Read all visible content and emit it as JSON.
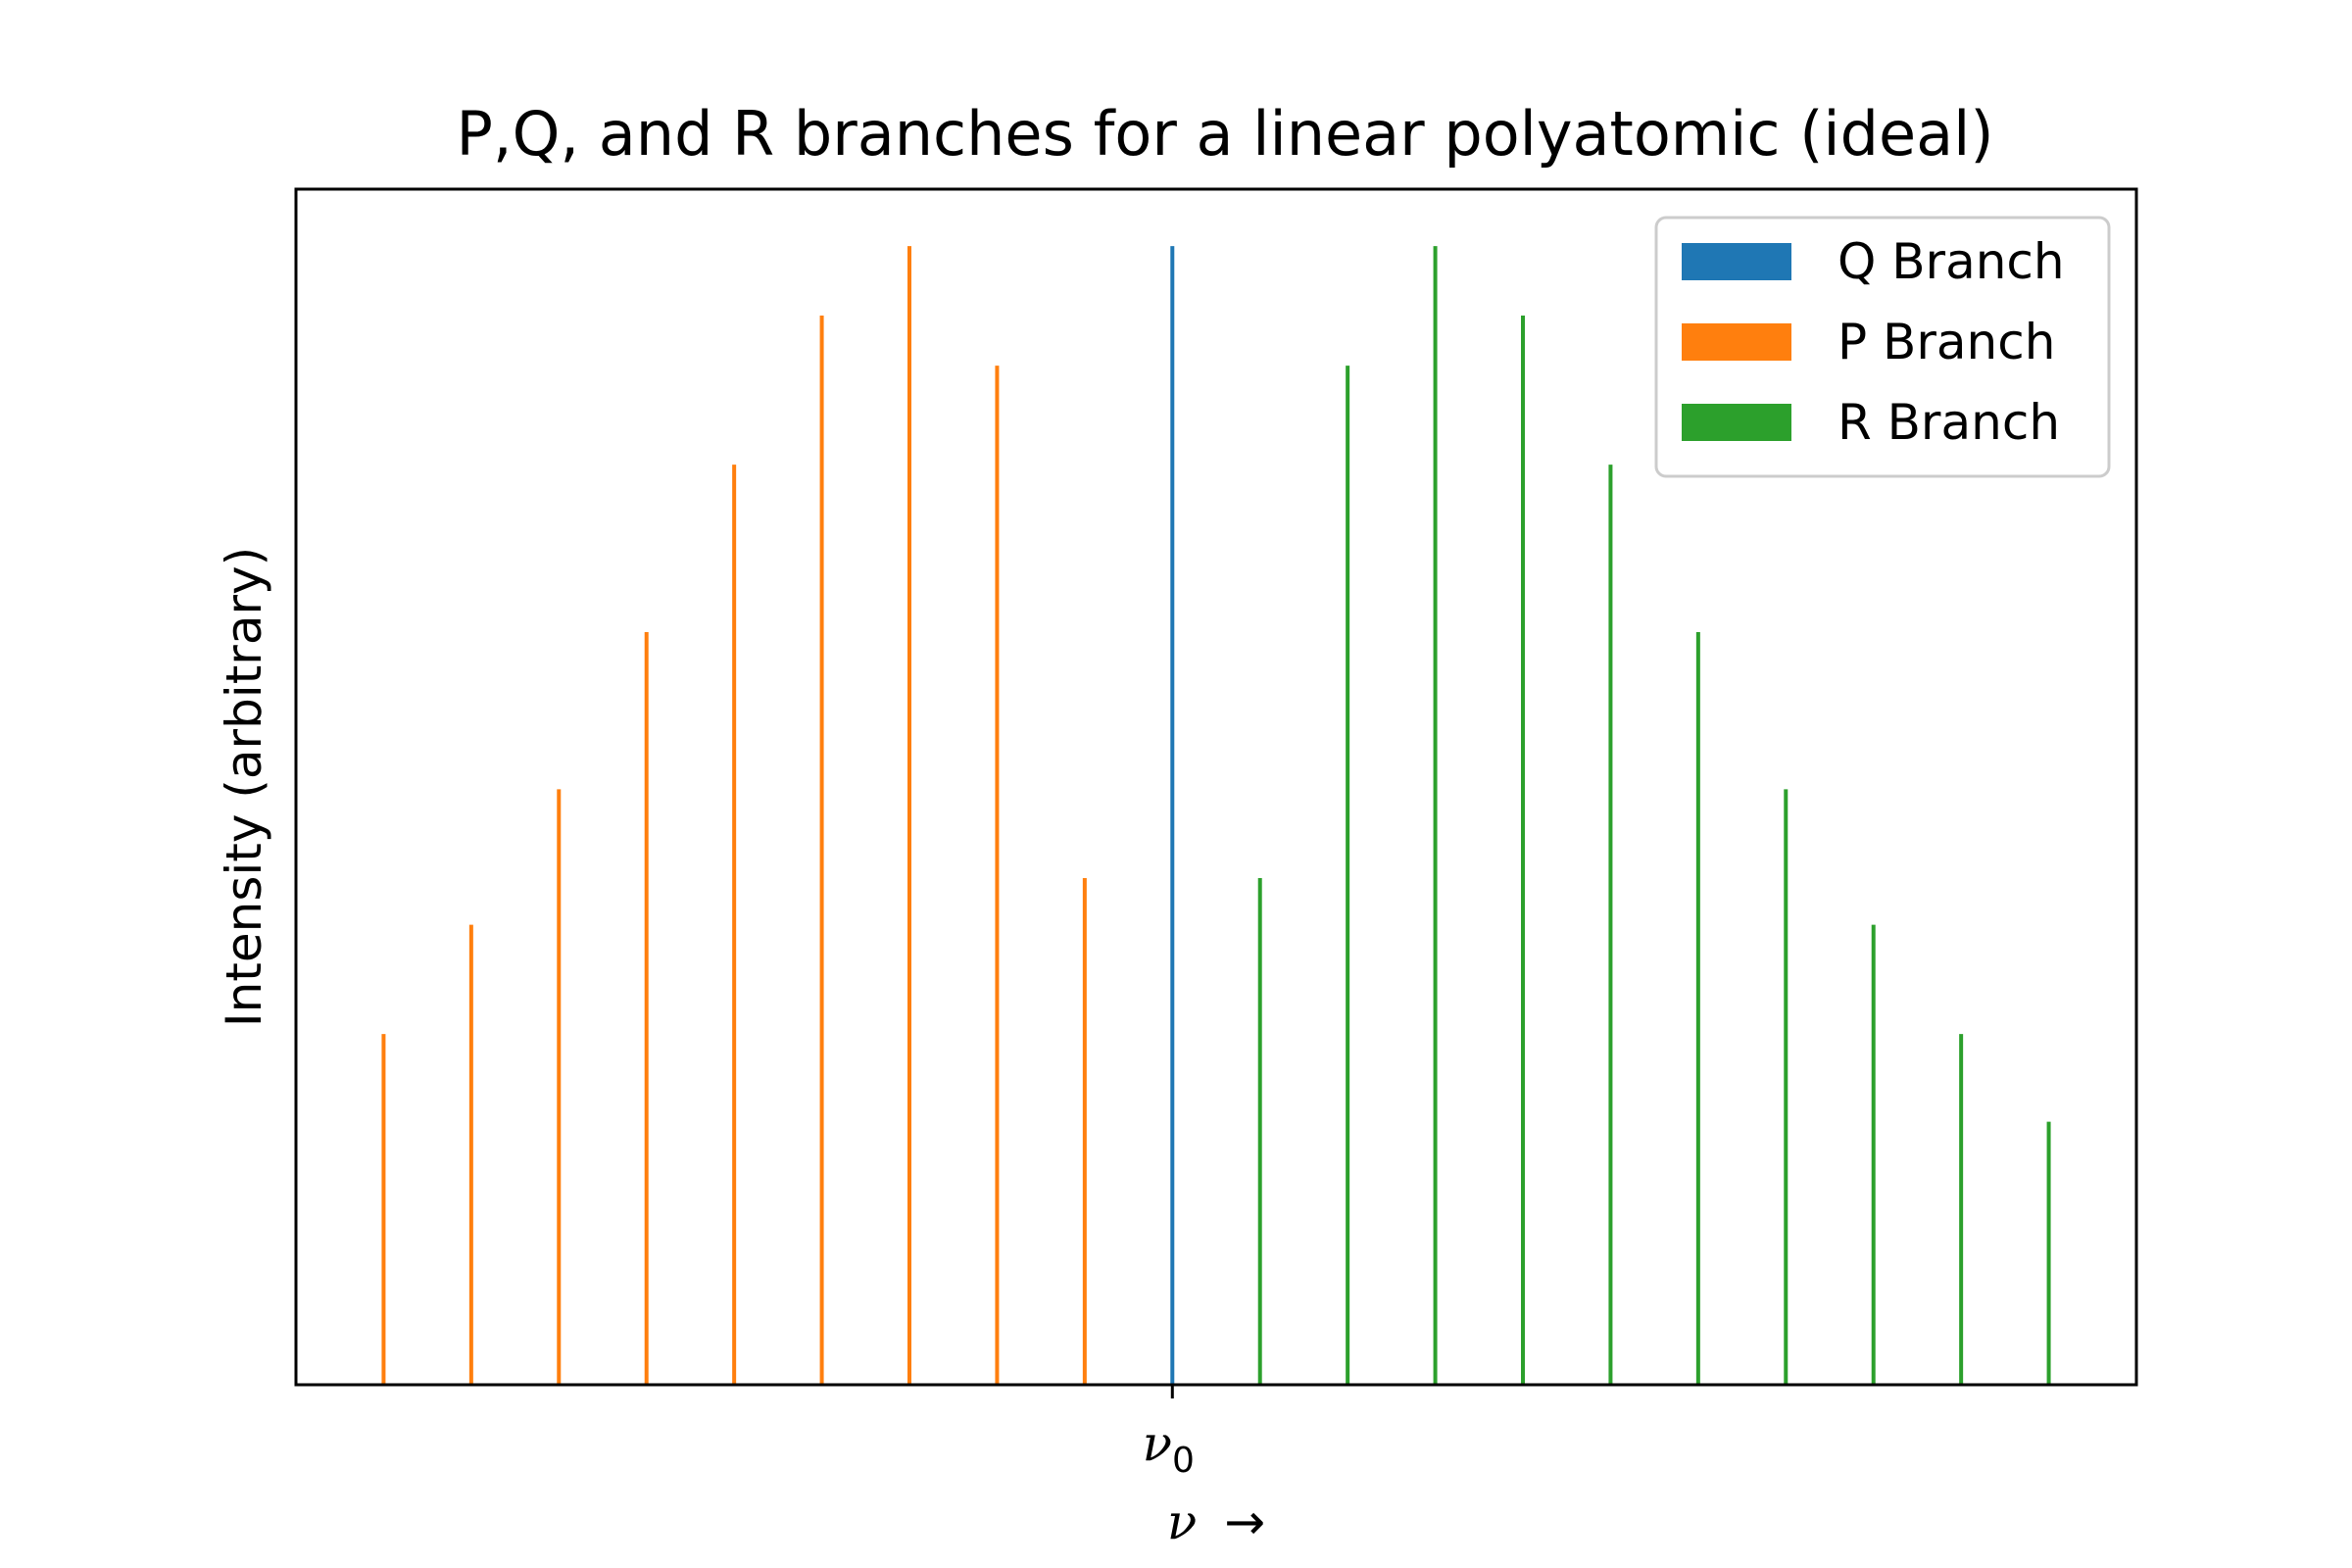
{
  "chart_data": {
    "type": "bar",
    "title": "P,Q, and R branches for a linear polyatomic (ideal)",
    "ylabel": "Intensity (arbitrary)",
    "xlabel": {
      "symbol": "ν",
      "arrow": "→"
    },
    "x_ticks": [
      {
        "x": 0,
        "symbol": "ν",
        "subscript": "0"
      }
    ],
    "xlim": [
      -10,
      11
    ],
    "ylim": [
      0,
      1.05
    ],
    "legend": {
      "placement": "top-right",
      "entries": [
        "Q Branch",
        "P Branch",
        "R Branch"
      ]
    },
    "series": [
      {
        "name": "Q Branch",
        "color": "#1f77b4",
        "x": [
          0
        ],
        "values": [
          1.0
        ]
      },
      {
        "name": "P Branch",
        "color": "#ff7f0e",
        "x": [
          -1,
          -2,
          -3,
          -4,
          -5,
          -6,
          -7,
          -8,
          -9
        ],
        "values": [
          0.445,
          0.895,
          1.0,
          0.939,
          0.808,
          0.661,
          0.523,
          0.404,
          0.308
        ]
      },
      {
        "name": "R Branch",
        "color": "#2ca02c",
        "x": [
          1,
          2,
          3,
          4,
          5,
          6,
          7,
          8,
          9,
          10
        ],
        "values": [
          0.445,
          0.895,
          1.0,
          0.939,
          0.808,
          0.661,
          0.523,
          0.404,
          0.308,
          0.231
        ]
      }
    ]
  }
}
